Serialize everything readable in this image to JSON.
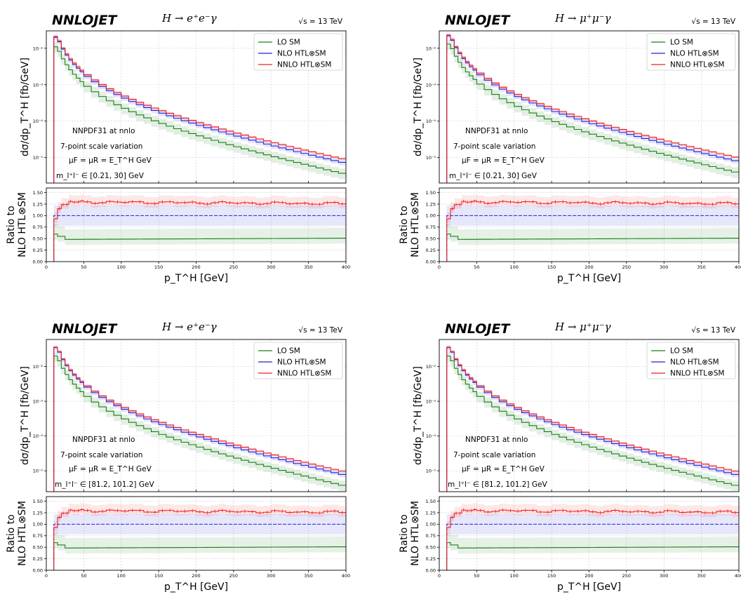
{
  "chart_data": [
    {
      "type": "line",
      "panel_title": "NNLOJET",
      "process": "H → e⁺e⁻γ",
      "energy": "√s = 13 TeV",
      "ylabel": "dσ/dp_T^H [fb/GeV]",
      "ratio_ylabel": [
        "Ratio to",
        "NLO HTL⊗SM"
      ],
      "xlabel": "p_T^H [GeV]",
      "xlim": [
        0,
        400
      ],
      "ylim_log": [
        2e-06,
        0.03
      ],
      "ratio_ylim": [
        0,
        1.6
      ],
      "annotations": [
        "NNPDF31 at nnlo",
        "7-point scale variation",
        "μF = μR = E_T^H GeV",
        "m_l⁺l⁻ ∈ [0.21, 30] GeV"
      ],
      "x_ticks": [
        "0",
        "50",
        "100",
        "150",
        "200",
        "250",
        "300",
        "350",
        "400"
      ],
      "y_ticks": [
        "10⁻⁵",
        "10⁻⁴",
        "10⁻³",
        "10⁻²"
      ],
      "ratio_ticks": [
        "0.00",
        "0.25",
        "0.50",
        "0.75",
        "1.00",
        "1.25",
        "1.50"
      ],
      "grid": true,
      "legend_position": "top-right",
      "series": [
        {
          "name": "LO SM",
          "color": "#1a7f1a",
          "peak": 0.011,
          "at_400": 3.5e-06
        },
        {
          "name": "NLO HTL⊗SM",
          "color": "#2222dd",
          "peak": 0.02,
          "at_400": 7e-06
        },
        {
          "name": "NNLO HTL⊗SM",
          "color": "#ee2222",
          "peak": 0.021,
          "at_400": 8.8e-06
        }
      ]
    },
    {
      "type": "line",
      "panel_title": "NNLOJET",
      "process": "H → μ⁺μ⁻γ",
      "energy": "√s = 13 TeV",
      "ylabel": "dσ/dp_T^H [fb/GeV]",
      "ratio_ylabel": [
        "Ratio to",
        "NLO HTL⊗SM"
      ],
      "xlabel": "p_T^H [GeV]",
      "xlim": [
        0,
        400
      ],
      "ylim_log": [
        2e-06,
        0.03
      ],
      "ratio_ylim": [
        0,
        1.6
      ],
      "annotations": [
        "NNPDF31 at nnlo",
        "7-point scale variation",
        "μF = μR = E_T^H GeV",
        "m_l⁺l⁻ ∈ [0.21, 30] GeV"
      ],
      "x_ticks": [
        "0",
        "50",
        "100",
        "150",
        "200",
        "250",
        "300",
        "350",
        "400"
      ],
      "y_ticks": [
        "10⁻⁵",
        "10⁻⁴",
        "10⁻³",
        "10⁻²"
      ],
      "ratio_ticks": [
        "0.00",
        "0.25",
        "0.50",
        "0.75",
        "1.00",
        "1.25",
        "1.50"
      ],
      "grid": true,
      "legend_position": "top-right",
      "series": [
        {
          "name": "LO SM",
          "color": "#1a7f1a",
          "peak": 0.013,
          "at_400": 3.8e-06
        },
        {
          "name": "NLO HTL⊗SM",
          "color": "#2222dd",
          "peak": 0.022,
          "at_400": 7.8e-06
        },
        {
          "name": "NNLO HTL⊗SM",
          "color": "#ee2222",
          "peak": 0.023,
          "at_400": 9.8e-06
        }
      ]
    },
    {
      "type": "line",
      "panel_title": "NNLOJET",
      "process": "H → e⁺e⁻γ",
      "energy": "√s = 13 TeV",
      "ylabel": "dσ/dp_T^H [fb/GeV]",
      "ratio_ylabel": [
        "Ratio to",
        "NLO HTL⊗SM"
      ],
      "xlabel": "p_T^H [GeV]",
      "xlim": [
        0,
        400
      ],
      "ylim_log": [
        2.5e-06,
        0.06
      ],
      "ratio_ylim": [
        0,
        1.6
      ],
      "annotations": [
        "NNPDF31 at nnlo",
        "7-point scale variation",
        "μF = μR = E_T^H GeV",
        "m_l⁺l⁻ ∈ [81.2, 101.2] GeV"
      ],
      "x_ticks": [
        "0",
        "50",
        "100",
        "150",
        "200",
        "250",
        "300",
        "350",
        "400"
      ],
      "y_ticks": [
        "10⁻⁵",
        "10⁻⁴",
        "10⁻³",
        "10⁻²"
      ],
      "ratio_ticks": [
        "0.00",
        "0.25",
        "0.50",
        "0.75",
        "1.00",
        "1.25",
        "1.50"
      ],
      "grid": true,
      "legend_position": "top-right",
      "series": [
        {
          "name": "LO SM",
          "color": "#1a7f1a",
          "peak": 0.02,
          "at_400": 3.6e-06
        },
        {
          "name": "NLO HTL⊗SM",
          "color": "#2222dd",
          "peak": 0.035,
          "at_400": 7.4e-06
        },
        {
          "name": "NNLO HTL⊗SM",
          "color": "#ee2222",
          "peak": 0.036,
          "at_400": 9.2e-06
        }
      ]
    },
    {
      "type": "line",
      "panel_title": "NNLOJET",
      "process": "H → μ⁺μ⁻γ",
      "energy": "√s = 13 TeV",
      "ylabel": "dσ/dp_T^H [fb/GeV]",
      "ratio_ylabel": [
        "Ratio to",
        "NLO HTL⊗SM"
      ],
      "xlabel": "p_T^H [GeV]",
      "xlim": [
        0,
        400
      ],
      "ylim_log": [
        2.5e-06,
        0.06
      ],
      "ratio_ylim": [
        0,
        1.6
      ],
      "annotations": [
        "NNPDF31 at nnlo",
        "7-point scale variation",
        "μF = μR = E_T^H GeV",
        "m_l⁺l⁻ ∈ [81.2, 101.2] GeV"
      ],
      "x_ticks": [
        "0",
        "50",
        "100",
        "150",
        "200",
        "250",
        "300",
        "350",
        "400"
      ],
      "y_ticks": [
        "10⁻⁵",
        "10⁻⁴",
        "10⁻³",
        "10⁻²"
      ],
      "ratio_ticks": [
        "0.00",
        "0.25",
        "0.50",
        "0.75",
        "1.00",
        "1.25",
        "1.50"
      ],
      "grid": true,
      "legend_position": "top-right",
      "series": [
        {
          "name": "LO SM",
          "color": "#1a7f1a",
          "peak": 0.02,
          "at_400": 3.6e-06
        },
        {
          "name": "NLO HTL⊗SM",
          "color": "#2222dd",
          "peak": 0.035,
          "at_400": 7.4e-06
        },
        {
          "name": "NNLO HTL⊗SM",
          "color": "#ee2222",
          "peak": 0.036,
          "at_400": 9.2e-06
        }
      ]
    }
  ]
}
